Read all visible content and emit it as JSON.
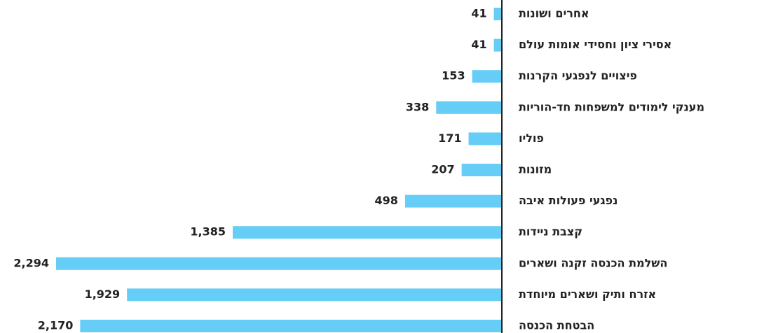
{
  "chart_data": {
    "type": "bar",
    "orientation": "horizontal",
    "categories": [
      "אחרים ושונות",
      "אסירי ציון וחסידי אומות עולם",
      "פיצויים לנפגעי הקרנות",
      "מענקי לימודים למשפחות חד-הוריות",
      "פוליו",
      "מזונות",
      "נפגעי פעולות איבה",
      "קצבת ניידות",
      "השלמת הכנסה זקנה ושארים",
      "אזרח ותיק ושארים מיוחדת",
      "הבטחת הכנסה"
    ],
    "values": [
      41,
      41,
      153,
      338,
      171,
      207,
      498,
      1385,
      2294,
      1929,
      2170
    ],
    "value_labels": [
      "41",
      "41",
      "153",
      "338",
      "171",
      "207",
      "498",
      "1,385",
      "2,294",
      "1,929",
      "2,170"
    ],
    "color": "#66cdf6"
  }
}
